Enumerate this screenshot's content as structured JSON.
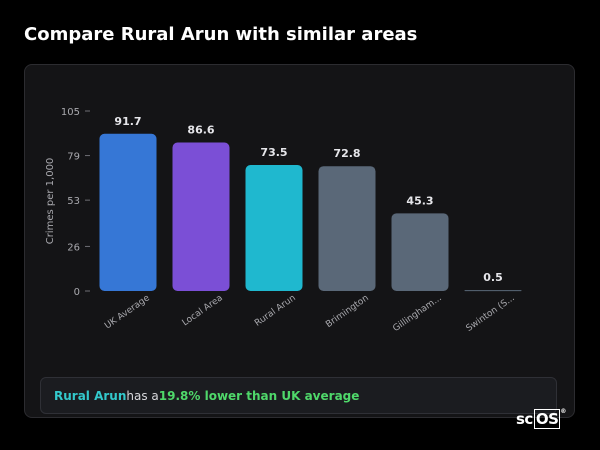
{
  "page": {
    "title": "Compare Rural Arun with similar areas"
  },
  "chart_data": {
    "type": "bar",
    "title": "",
    "xlabel": "",
    "ylabel": "Crimes per 1,000",
    "ylim": [
      0,
      105
    ],
    "yticks": [
      0,
      26,
      53,
      79,
      105
    ],
    "grid": false,
    "categories": [
      "UK Average",
      "Local Area",
      "Rural Arun",
      "Brimington",
      "Gillingham...",
      "Swinton (S..."
    ],
    "values": [
      91.7,
      86.6,
      73.5,
      72.8,
      45.3,
      0.5
    ],
    "value_labels": [
      "91.7",
      "86.6",
      "73.5",
      "72.8",
      "45.3",
      "0.5"
    ],
    "bar_colors": [
      "#3677d6",
      "#7b4fd6",
      "#1fb8cf",
      "#5a6878",
      "#5a6878",
      "#5a6878"
    ]
  },
  "callout": {
    "area": "Rural Arun",
    "middle": " has a ",
    "difference": "19.8% lower than UK average"
  },
  "logo": {
    "prefix": "sc",
    "boxed": "OS",
    "mark": "®"
  }
}
